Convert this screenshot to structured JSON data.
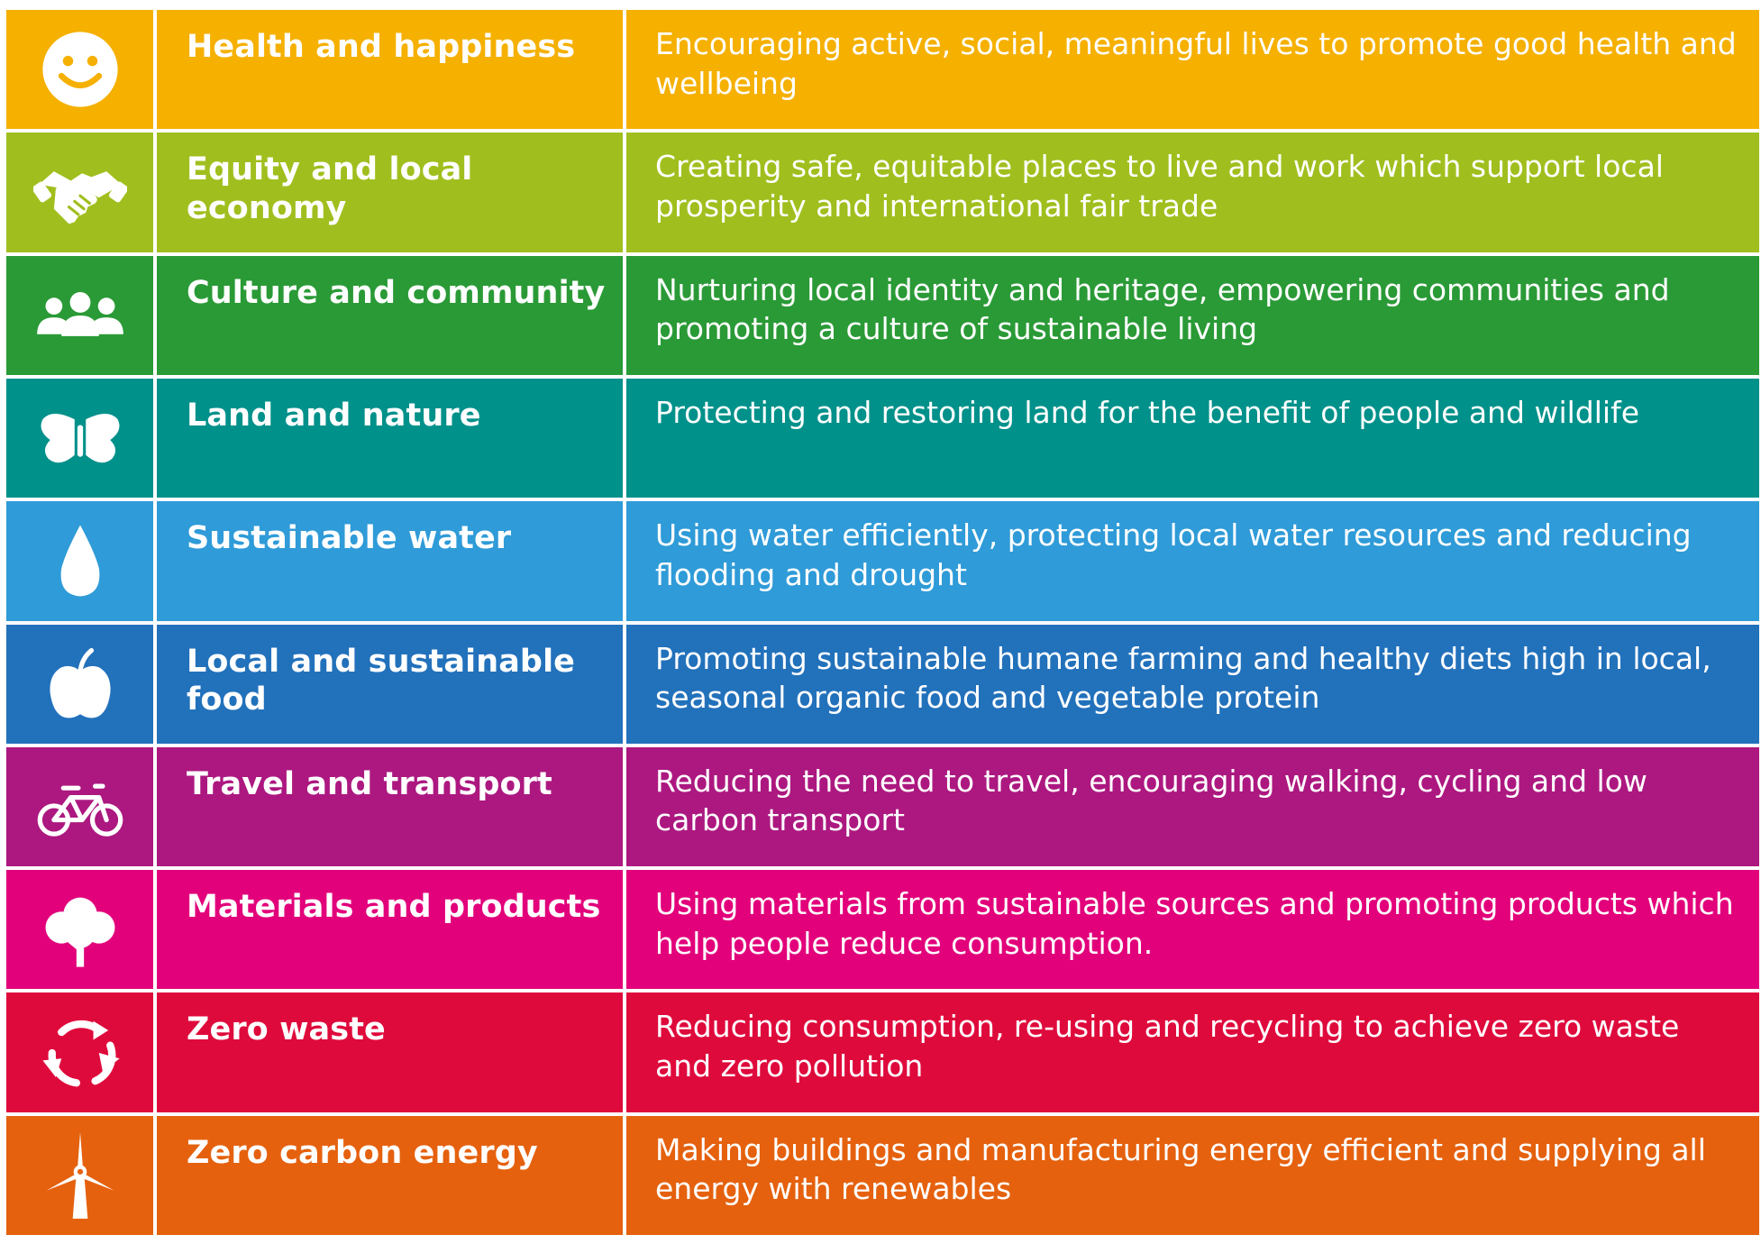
{
  "rows": [
    {
      "title": "Health and happiness",
      "description": "Encouraging active, social, meaningful lives to promote good health and wellbeing",
      "color": "#F5B000",
      "icon": "smiley-face-icon"
    },
    {
      "title": "Equity and local economy",
      "description": "Creating safe, equitable places to live and work which support local prosperity and international fair trade",
      "color": "#A0BF1E",
      "icon": "handshake-icon"
    },
    {
      "title": "Culture and community",
      "description": "Nurturing local identity and heritage, empowering communities and promoting a culture of sustainable living",
      "color": "#2A9A36",
      "icon": "people-group-icon"
    },
    {
      "title": "Land and nature",
      "description": "Protecting and restoring land for the benefit of people and wildlife",
      "color": "#00918A",
      "icon": "butterfly-icon"
    },
    {
      "title": "Sustainable water",
      "description": "Using water efficiently, protecting local water resources and reducing flooding and drought",
      "color": "#2F9BD8",
      "icon": "water-drop-icon"
    },
    {
      "title": "Local and sustainable food",
      "description": "Promoting sustainable humane farming and healthy diets high in local, seasonal organic food and vegetable protein",
      "color": "#2271BB",
      "icon": "apple-icon"
    },
    {
      "title": "Travel and transport",
      "description": "Reducing the need to travel, encouraging walking, cycling and low carbon transport",
      "color": "#AC1880",
      "icon": "bicycle-icon"
    },
    {
      "title": "Materials and products",
      "description": "Using materials from sustainable sources and promoting products which help people reduce consumption.",
      "color": "#E2007B",
      "icon": "tree-icon"
    },
    {
      "title": "Zero waste",
      "description": "Reducing consumption, re-using and recycling to achieve zero waste and zero pollution",
      "color": "#DF0A3C",
      "icon": "recycle-icon"
    },
    {
      "title": "Zero carbon energy",
      "description": "Making buildings and manufacturing energy efficient and supplying all energy with renewables",
      "color": "#E5610E",
      "icon": "wind-turbine-icon"
    }
  ]
}
